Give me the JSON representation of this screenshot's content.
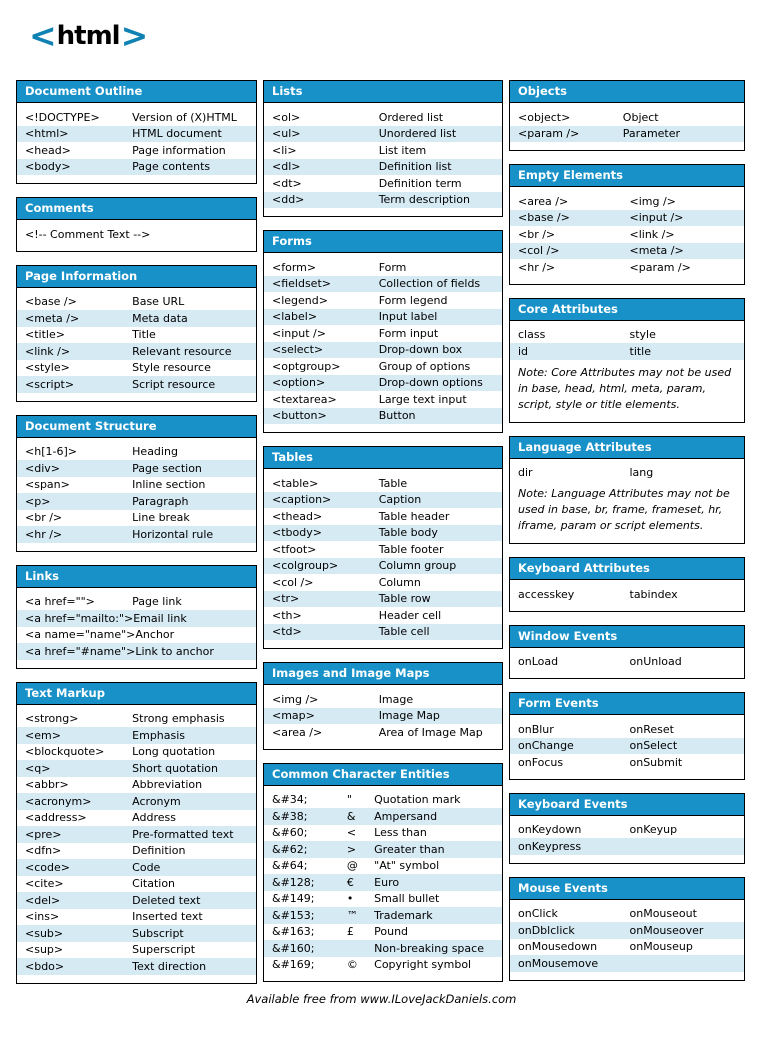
{
  "logo": {
    "lt": "<",
    "word": "html",
    "gt": ">"
  },
  "colors": {
    "header_blue": "#1791c8",
    "stripe_blue": "#d6eaf4",
    "logo_blue": "#0f81b2",
    "border": "#000000"
  },
  "footer": {
    "credit": "Available free from www.ILoveJackDaniels.com"
  },
  "columns": [
    {
      "sections": [
        {
          "title": "Document Outline",
          "layout": "pair",
          "rows": [
            [
              "<!DOCTYPE>",
              "Version of (X)HTML"
            ],
            [
              "<html>",
              "HTML document"
            ],
            [
              "<head>",
              "Page information"
            ],
            [
              "<body>",
              "Page contents"
            ]
          ]
        },
        {
          "title": "Comments",
          "layout": "single",
          "rows": [
            [
              "<!-- Comment Text -->"
            ]
          ]
        },
        {
          "title": "Page Information",
          "layout": "pair",
          "rows": [
            [
              "<base />",
              "Base URL"
            ],
            [
              "<meta />",
              "Meta data"
            ],
            [
              "<title>",
              "Title"
            ],
            [
              "<link />",
              "Relevant resource"
            ],
            [
              "<style>",
              "Style resource"
            ],
            [
              "<script>",
              "Script resource"
            ]
          ]
        },
        {
          "title": "Document Structure",
          "layout": "pair",
          "rows": [
            [
              "<h[1-6]>",
              "Heading"
            ],
            [
              "<div>",
              "Page section"
            ],
            [
              "<span>",
              "Inline section"
            ],
            [
              "<p>",
              "Paragraph"
            ],
            [
              "<br />",
              "Line break"
            ],
            [
              "<hr />",
              "Horizontal rule"
            ]
          ]
        },
        {
          "title": "Links",
          "layout": "pair",
          "rows": [
            [
              "<a href=\"\">",
              "Page link"
            ],
            [
              "<a href=\"mailto:\">",
              "Email link"
            ],
            [
              "<a name=\"name\">",
              "Anchor"
            ],
            [
              "<a href=\"#name\">",
              "Link to anchor"
            ]
          ]
        },
        {
          "title": "Text Markup",
          "layout": "pair",
          "rows": [
            [
              "<strong>",
              "Strong emphasis"
            ],
            [
              "<em>",
              "Emphasis"
            ],
            [
              "<blockquote>",
              "Long quotation"
            ],
            [
              "<q>",
              "Short quotation"
            ],
            [
              "<abbr>",
              "Abbreviation"
            ],
            [
              "<acronym>",
              "Acronym"
            ],
            [
              "<address>",
              "Address"
            ],
            [
              "<pre>",
              "Pre-formatted text"
            ],
            [
              "<dfn>",
              "Definition"
            ],
            [
              "<code>",
              "Code"
            ],
            [
              "<cite>",
              "Citation"
            ],
            [
              "<del>",
              "Deleted text"
            ],
            [
              "<ins>",
              "Inserted text"
            ],
            [
              "<sub>",
              "Subscript"
            ],
            [
              "<sup>",
              "Superscript"
            ],
            [
              "<bdo>",
              "Text direction"
            ]
          ]
        }
      ]
    },
    {
      "sections": [
        {
          "title": "Lists",
          "layout": "pair",
          "rows": [
            [
              "<ol>",
              "Ordered list"
            ],
            [
              "<ul>",
              "Unordered list"
            ],
            [
              "<li>",
              "List item"
            ],
            [
              "<dl>",
              "Definition list"
            ],
            [
              "<dt>",
              "Definition term"
            ],
            [
              "<dd>",
              "Term description"
            ]
          ]
        },
        {
          "title": "Forms",
          "layout": "pair",
          "rows": [
            [
              "<form>",
              "Form"
            ],
            [
              "<fieldset>",
              "Collection of fields"
            ],
            [
              "<legend>",
              "Form legend"
            ],
            [
              "<label>",
              "Input label"
            ],
            [
              "<input />",
              "Form input"
            ],
            [
              "<select>",
              "Drop-down box"
            ],
            [
              "<optgroup>",
              "Group of options"
            ],
            [
              "<option>",
              "Drop-down options"
            ],
            [
              "<textarea>",
              "Large text input"
            ],
            [
              "<button>",
              "Button"
            ]
          ]
        },
        {
          "title": "Tables",
          "layout": "pair",
          "rows": [
            [
              "<table>",
              "Table"
            ],
            [
              "<caption>",
              "Caption"
            ],
            [
              "<thead>",
              "Table header"
            ],
            [
              "<tbody>",
              "Table body"
            ],
            [
              "<tfoot>",
              "Table footer"
            ],
            [
              "<colgroup>",
              "Column group"
            ],
            [
              "<col />",
              "Column"
            ],
            [
              "<tr>",
              "Table row"
            ],
            [
              "<th>",
              "Header cell"
            ],
            [
              "<td>",
              "Table cell"
            ]
          ]
        },
        {
          "title": "Images and Image Maps",
          "layout": "pair",
          "rows": [
            [
              "<img />",
              "Image"
            ],
            [
              "<map>",
              "Image Map"
            ],
            [
              "<area />",
              "Area of Image Map"
            ]
          ]
        },
        {
          "title": "Common Character Entities",
          "layout": "entity",
          "rows": [
            [
              "&#34;",
              "\"",
              "Quotation mark"
            ],
            [
              "&#38;",
              "&",
              "Ampersand"
            ],
            [
              "&#60;",
              "<",
              "Less than"
            ],
            [
              "&#62;",
              ">",
              "Greater than"
            ],
            [
              "&#64;",
              "@",
              "\"At\" symbol"
            ],
            [
              "&#128;",
              "€",
              "Euro"
            ],
            [
              "&#149;",
              "•",
              "Small bullet"
            ],
            [
              "&#153;",
              "™",
              "Trademark"
            ],
            [
              "&#163;",
              "£",
              "Pound"
            ],
            [
              "&#160;",
              "",
              "Non-breaking space"
            ],
            [
              "&#169;",
              "©",
              "Copyright symbol"
            ]
          ]
        }
      ]
    },
    {
      "sections": [
        {
          "title": "Objects",
          "layout": "pair",
          "rows": [
            [
              "<object>",
              "Object"
            ],
            [
              "<param />",
              "Parameter"
            ]
          ]
        },
        {
          "title": "Empty Elements",
          "layout": "equal",
          "rows": [
            [
              "<area />",
              "<img />"
            ],
            [
              "<base />",
              "<input />"
            ],
            [
              "<br />",
              "<link />"
            ],
            [
              "<col />",
              "<meta />"
            ],
            [
              "<hr />",
              "<param />"
            ]
          ]
        },
        {
          "title": "Core Attributes",
          "layout": "equal",
          "rows": [
            [
              "class",
              "style"
            ],
            [
              "id",
              "title"
            ]
          ],
          "note": "Note: Core Attributes may not be used in base, head, html, meta, param, script, style or title elements."
        },
        {
          "title": "Language Attributes",
          "layout": "equal",
          "rows": [
            [
              "dir",
              "lang"
            ]
          ],
          "note": "Note: Language Attributes may not be used in base, br, frame, frameset, hr, iframe, param or script elements."
        },
        {
          "title": "Keyboard Attributes",
          "layout": "equal",
          "rows": [
            [
              "accesskey",
              "tabindex"
            ]
          ]
        },
        {
          "title": "Window Events",
          "layout": "equal",
          "rows": [
            [
              "onLoad",
              "onUnload"
            ]
          ]
        },
        {
          "title": "Form Events",
          "layout": "equal",
          "rows": [
            [
              "onBlur",
              "onReset"
            ],
            [
              "onChange",
              "onSelect"
            ],
            [
              "onFocus",
              "onSubmit"
            ]
          ]
        },
        {
          "title": "Keyboard Events",
          "layout": "equal",
          "rows": [
            [
              "onKeydown",
              "onKeyup"
            ],
            [
              "onKeypress",
              ""
            ]
          ]
        },
        {
          "title": "Mouse Events",
          "layout": "equal",
          "rows": [
            [
              "onClick",
              "onMouseout"
            ],
            [
              "onDblclick",
              "onMouseover"
            ],
            [
              "onMousedown",
              "onMouseup"
            ],
            [
              "onMousemove",
              ""
            ]
          ]
        }
      ]
    }
  ]
}
